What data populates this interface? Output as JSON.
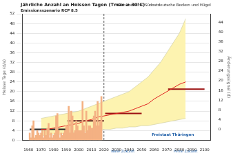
{
  "chart_data": {
    "type": "combo",
    "title": "Jährliche Anzahl an Heissen Tagen (Tmax ≥ 30°C)",
    "subtitle": "Emissionsszenario RCP 8.5",
    "annotations": [
      "Klimabereich: Südostdeutsche Becken und Hügel",
      "Freistaat Thüringen"
    ],
    "period_labels": [
      {
        "label": "Nahe Zukunft",
        "x": 2035
      },
      {
        "label": "Ferne Zukunft",
        "x": 2085
      }
    ],
    "vlines": [
      2020
    ],
    "y_label": "Heisse Tage (d/a)",
    "y2_label": "Änderungssignal (d)",
    "xlim": [
      1960,
      2100
    ],
    "xticks": [
      1960,
      1970,
      1980,
      1990,
      2000,
      2010,
      2020,
      2030,
      2040,
      2050,
      2060,
      2070,
      2080,
      2090,
      2100
    ],
    "ylim": [
      0,
      52
    ],
    "yticks": [
      0,
      4,
      8,
      12,
      16,
      20,
      24,
      28,
      32,
      36,
      40,
      44,
      48,
      52
    ],
    "y2lim": [
      -4.5,
      47.5
    ],
    "y2ticks": [
      0,
      4,
      8,
      12,
      16,
      20,
      24,
      28,
      32,
      36,
      40,
      44
    ],
    "grid": true,
    "series": [
      {
        "type": "bar",
        "color": "#f4b183",
        "x": [
          1961,
          1962,
          1963,
          1964,
          1965,
          1966,
          1967,
          1968,
          1969,
          1970,
          1971,
          1972,
          1973,
          1974,
          1975,
          1976,
          1977,
          1978,
          1979,
          1980,
          1981,
          1982,
          1983,
          1984,
          1985,
          1986,
          1987,
          1988,
          1989,
          1990,
          1991,
          1992,
          1993,
          1994,
          1995,
          1996,
          1997,
          1998,
          1999,
          2000,
          2001,
          2002,
          2003,
          2004,
          2005,
          2006,
          2007,
          2008,
          2009,
          2010,
          2011,
          2012,
          2013,
          2014,
          2015,
          2016,
          2017,
          2018
        ],
        "values": [
          3,
          1,
          6,
          8,
          1,
          2,
          4,
          3,
          2,
          3,
          4,
          1,
          4,
          2,
          5,
          7,
          1,
          3,
          1,
          2,
          3,
          10,
          11,
          4,
          1,
          3,
          2,
          3,
          4,
          6,
          6,
          14,
          3,
          12,
          10,
          3,
          4,
          8,
          6,
          4,
          4,
          4,
          16,
          6,
          3,
          12,
          4,
          6,
          6,
          5,
          5,
          10,
          12,
          6,
          16,
          6,
          8,
          18
        ]
      },
      {
        "type": "line",
        "color": "#e02020",
        "x": [
          1970,
          1975,
          1980,
          1985,
          1990,
          1995,
          2000,
          2005,
          2010,
          2015,
          2020,
          2025,
          2030,
          2035,
          2040,
          2045,
          2050,
          2055,
          2060,
          2065,
          2070,
          2075,
          2080,
          2085
        ],
        "values": [
          4.5,
          4.5,
          5,
          5.5,
          6,
          6.5,
          7,
          8,
          8.5,
          9.5,
          10,
          10.5,
          11,
          11.5,
          12,
          13,
          14,
          15,
          17,
          18.5,
          20,
          21.5,
          23,
          24
        ]
      },
      {
        "type": "line",
        "color": "#222222",
        "x": [
          1961,
          1990
        ],
        "values": [
          4.5,
          4.5
        ]
      },
      {
        "type": "line",
        "color": "#5a1a1a",
        "x": [
          1991,
          2020
        ],
        "values": [
          8,
          8
        ]
      },
      {
        "type": "line",
        "color": "#9b1010",
        "x": [
          2021,
          2050
        ],
        "values": [
          11,
          11
        ]
      },
      {
        "type": "line",
        "color": "#9b1010",
        "x": [
          2071,
          2100
        ],
        "values": [
          21,
          21
        ]
      },
      {
        "type": "band",
        "color": "#fdf3b0",
        "x": [
          1970,
          1975,
          1980,
          1985,
          1990,
          1995,
          2000,
          2005,
          2010,
          2015,
          2020,
          2025,
          2030,
          2035,
          2040,
          2045,
          2050,
          2055,
          2060,
          2065,
          2070,
          2075,
          2080,
          2085
        ],
        "lower": [
          2,
          2,
          2.5,
          2.5,
          3,
          3,
          3.5,
          3.5,
          4,
          4,
          4.5,
          4.5,
          5,
          5,
          5.5,
          5.5,
          6,
          6,
          6.5,
          7,
          7.5,
          8,
          8.5,
          9
        ],
        "upper": [
          9,
          9.5,
          10,
          10.5,
          11,
          11.5,
          12,
          13,
          14,
          15,
          16,
          17,
          18,
          19,
          20,
          22,
          24,
          26,
          29,
          32,
          36,
          40,
          44,
          50
        ]
      }
    ]
  }
}
